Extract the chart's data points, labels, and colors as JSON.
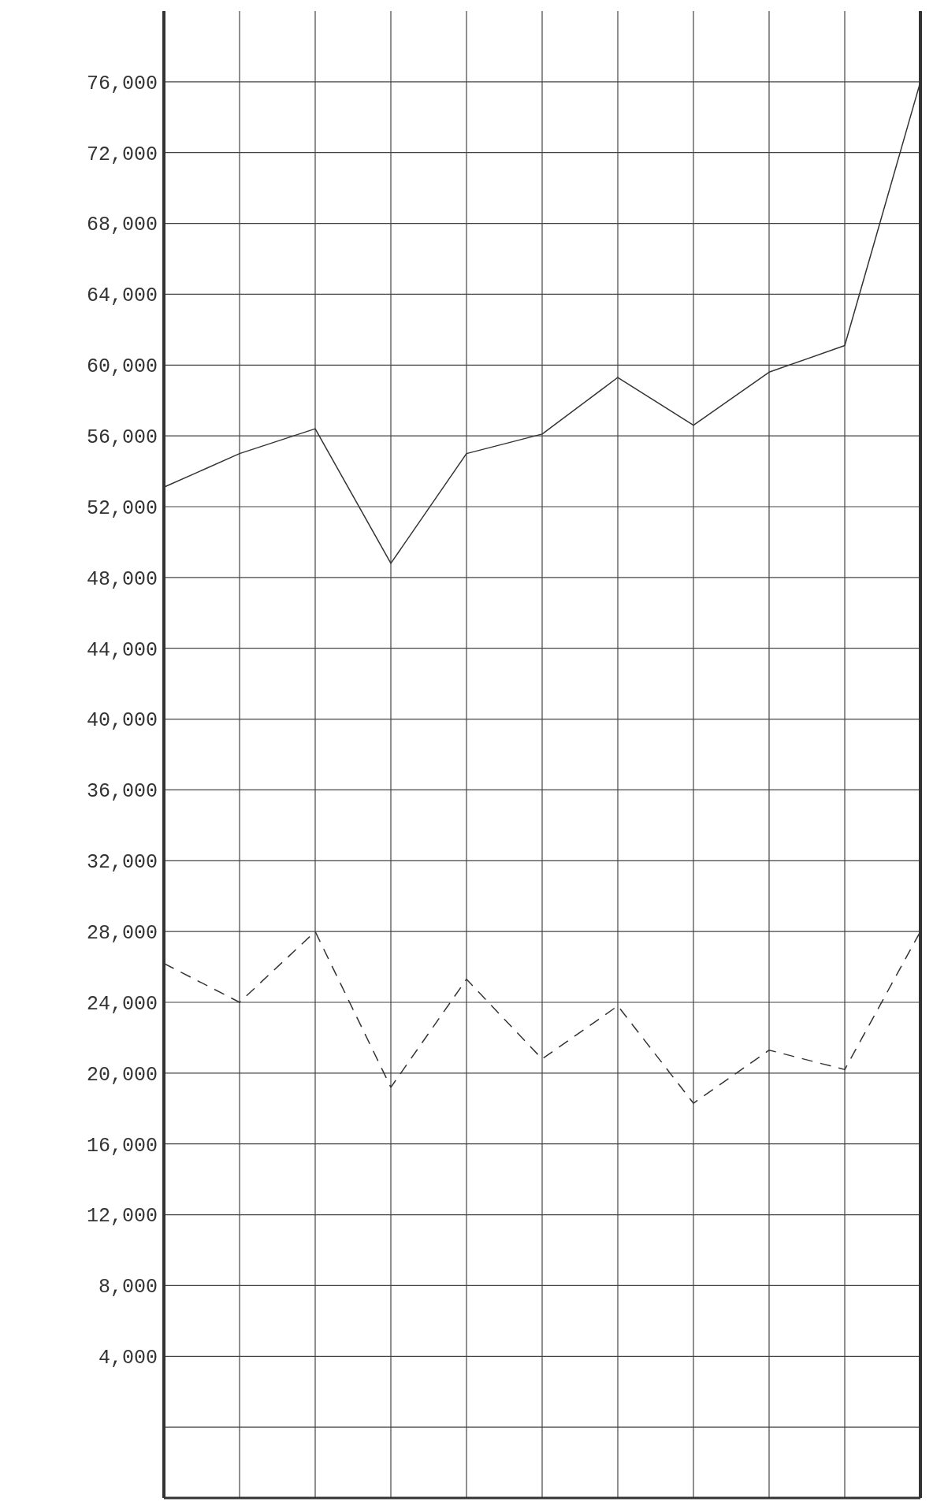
{
  "chart_data": {
    "type": "line",
    "categories": [
      null,
      null,
      null,
      null,
      null,
      null,
      null,
      null,
      null,
      null,
      null
    ],
    "series": [
      {
        "color": "#333333",
        "line_style": "solid",
        "values": [
          53100,
          55000,
          56400,
          48800,
          55000,
          56100,
          59300,
          56600,
          59600,
          61100,
          76000
        ]
      },
      {
        "color": "#333333",
        "line_style": "dashed",
        "values": [
          26200,
          24000,
          28000,
          19200,
          25300,
          20800,
          23800,
          18300,
          21300,
          20200,
          28000
        ]
      }
    ],
    "ylim": [
      -4000,
      80000
    ],
    "yticks": [
      {
        "value": 0,
        "label": null
      },
      {
        "value": 4000,
        "label": "4,000"
      },
      {
        "value": 8000,
        "label": "8,000"
      },
      {
        "value": 12000,
        "label": "12,000"
      },
      {
        "value": 16000,
        "label": "16,000"
      },
      {
        "value": 20000,
        "label": "20,000"
      },
      {
        "value": 24000,
        "label": "24,000"
      },
      {
        "value": 28000,
        "label": "28,000"
      },
      {
        "value": 32000,
        "label": "32,000"
      },
      {
        "value": 36000,
        "label": "36,000"
      },
      {
        "value": 40000,
        "label": "40,000"
      },
      {
        "value": 44000,
        "label": "44,000"
      },
      {
        "value": 48000,
        "label": "48,000"
      },
      {
        "value": 52000,
        "label": "52,000"
      },
      {
        "value": 56000,
        "label": "56,000"
      },
      {
        "value": 60000,
        "label": "60,000"
      },
      {
        "value": 64000,
        "label": "64,000"
      },
      {
        "value": 68000,
        "label": "68,000"
      },
      {
        "value": 72000,
        "label": "72,000"
      },
      {
        "value": 76000,
        "label": "76,000"
      }
    ],
    "grid": true,
    "legend": false,
    "marker": "none",
    "tick_labels": "y"
  }
}
